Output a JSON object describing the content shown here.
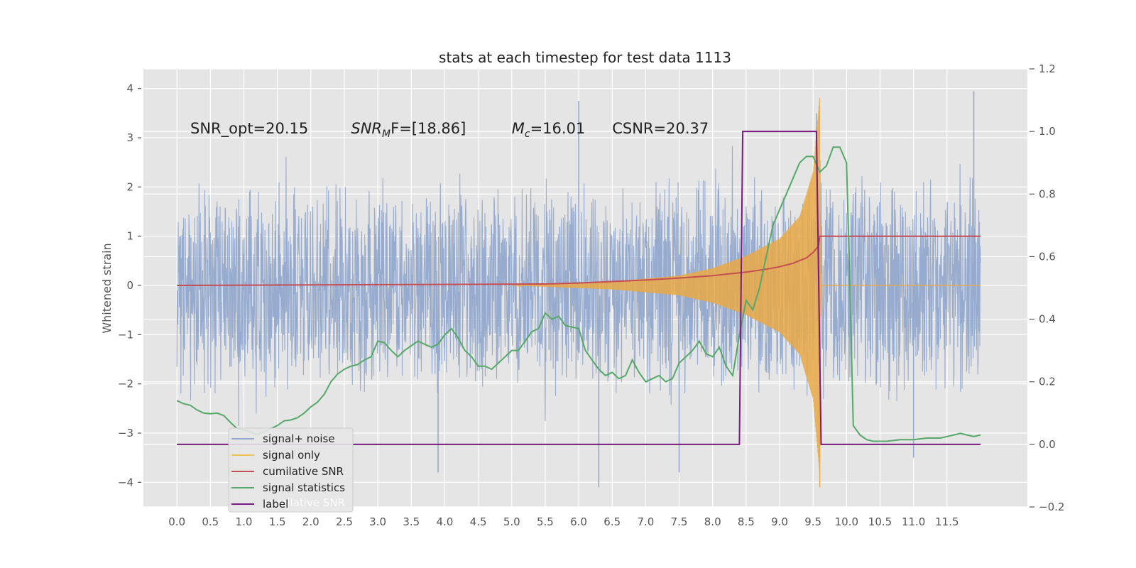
{
  "chart_data": {
    "type": "line",
    "title": "stats at each timestep for test data 1113",
    "ylabel": "Whitened strain",
    "y2label": "",
    "xlim": [
      -0.5,
      12.7
    ],
    "ylim": [
      -4.5,
      4.4
    ],
    "y2lim": [
      -0.2,
      1.2
    ],
    "x_ticks": [
      0.0,
      0.5,
      1.0,
      1.5,
      2.0,
      2.5,
      3.0,
      3.5,
      4.0,
      4.5,
      5.0,
      5.5,
      6.0,
      6.5,
      7.0,
      7.5,
      8.0,
      8.5,
      9.0,
      9.5,
      10.0,
      10.5,
      11.0,
      11.5
    ],
    "x_tick_labels": [
      "0.0",
      "0.5",
      "1.0",
      "1.5",
      "2.0",
      "2.5",
      "3.0",
      "3.5",
      "4.0",
      "4.5",
      "5.0",
      "5.5",
      "6.0",
      "6.5",
      "7.0",
      "7.5",
      "8.0",
      "8.5",
      "9.0",
      "9.5",
      "10.0",
      "10.5",
      "11.0",
      "11.5"
    ],
    "y_ticks": [
      4,
      3,
      2,
      1,
      0,
      -1,
      -2,
      -3,
      -4
    ],
    "y_tick_labels": [
      "4",
      "3",
      "2",
      "1",
      "0",
      "−1",
      "−2",
      "−3",
      "−4"
    ],
    "y2_ticks": [
      1.2,
      1.0,
      0.8,
      0.6,
      0.4,
      0.2,
      0.0,
      -0.2
    ],
    "y2_tick_labels": [
      "1.2",
      "1.0",
      "0.8",
      "0.6",
      "0.4",
      "0.2",
      "0.0",
      "−0.2"
    ],
    "grid": true,
    "legend_position": "lower-left",
    "annotations": [
      {
        "text": "SNR_opt=20.15",
        "x": 0.2,
        "y": 3.2
      },
      {
        "text": "SNR",
        "sub": "M",
        "text2": "F=[18.86]",
        "x": 2.6,
        "y": 3.2
      },
      {
        "text": "M",
        "sub": "c",
        "text2": "=16.01",
        "x": 5.0,
        "y": 3.2
      },
      {
        "text": "CSNR=20.37",
        "x": 6.5,
        "y": 3.2
      }
    ],
    "series": [
      {
        "name": "signal+ noise",
        "color": "#92a8cc",
        "axis": "left",
        "kind": "noise",
        "amp_env": [
          [
            0.0,
            2.3
          ],
          [
            8.0,
            2.3
          ],
          [
            9.6,
            2.4
          ],
          [
            12.0,
            2.3
          ]
        ],
        "spikes": [
          [
            6.0,
            3.75
          ],
          [
            11.9,
            3.95
          ],
          [
            9.55,
            3.5
          ],
          [
            6.3,
            -4.1
          ],
          [
            3.9,
            -3.8
          ],
          [
            11.0,
            -3.5
          ],
          [
            7.5,
            -3.8
          ]
        ],
        "x_range": [
          0.0,
          12.0
        ]
      },
      {
        "name": "signal only",
        "color": "#e9a845",
        "axis": "left",
        "kind": "chirp",
        "env": [
          [
            5.0,
            0.0
          ],
          [
            6.5,
            0.08
          ],
          [
            7.5,
            0.2
          ],
          [
            8.0,
            0.35
          ],
          [
            8.5,
            0.6
          ],
          [
            9.0,
            0.95
          ],
          [
            9.3,
            1.4
          ],
          [
            9.5,
            2.3
          ],
          [
            9.6,
            3.85
          ],
          [
            9.62,
            0.0
          ],
          [
            12.0,
            0.0
          ]
        ],
        "min_spike": [
          9.6,
          -4.1
        ]
      },
      {
        "name": "cumilative SNR",
        "color": "#c44e52",
        "axis": "left",
        "kind": "line",
        "points": [
          [
            0.0,
            0.0
          ],
          [
            2.0,
            0.01
          ],
          [
            4.0,
            0.02
          ],
          [
            5.5,
            0.03
          ],
          [
            6.0,
            0.05
          ],
          [
            6.5,
            0.08
          ],
          [
            7.0,
            0.11
          ],
          [
            7.5,
            0.15
          ],
          [
            8.0,
            0.2
          ],
          [
            8.5,
            0.27
          ],
          [
            8.8,
            0.33
          ],
          [
            9.0,
            0.38
          ],
          [
            9.2,
            0.45
          ],
          [
            9.4,
            0.56
          ],
          [
            9.5,
            0.67
          ],
          [
            9.58,
            0.8
          ],
          [
            9.6,
            1.0
          ],
          [
            12.0,
            1.0
          ]
        ]
      },
      {
        "name": "signal statistics",
        "color": "#55a868",
        "axis": "right",
        "kind": "line",
        "points": [
          [
            0.0,
            0.14
          ],
          [
            0.1,
            0.13
          ],
          [
            0.2,
            0.125
          ],
          [
            0.3,
            0.11
          ],
          [
            0.4,
            0.1
          ],
          [
            0.5,
            0.098
          ],
          [
            0.6,
            0.1
          ],
          [
            0.7,
            0.092
          ],
          [
            0.8,
            0.07
          ],
          [
            0.9,
            0.05
          ],
          [
            1.0,
            0.045
          ],
          [
            1.1,
            0.04
          ],
          [
            1.2,
            0.03
          ],
          [
            1.3,
            0.04
          ],
          [
            1.4,
            0.05
          ],
          [
            1.5,
            0.06
          ],
          [
            1.6,
            0.075
          ],
          [
            1.7,
            0.078
          ],
          [
            1.8,
            0.085
          ],
          [
            1.9,
            0.1
          ],
          [
            2.0,
            0.12
          ],
          [
            2.1,
            0.135
          ],
          [
            2.2,
            0.16
          ],
          [
            2.3,
            0.2
          ],
          [
            2.4,
            0.225
          ],
          [
            2.5,
            0.24
          ],
          [
            2.6,
            0.25
          ],
          [
            2.7,
            0.255
          ],
          [
            2.8,
            0.27
          ],
          [
            2.9,
            0.28
          ],
          [
            3.0,
            0.33
          ],
          [
            3.1,
            0.325
          ],
          [
            3.2,
            0.3
          ],
          [
            3.3,
            0.28
          ],
          [
            3.4,
            0.3
          ],
          [
            3.5,
            0.315
          ],
          [
            3.6,
            0.33
          ],
          [
            3.7,
            0.32
          ],
          [
            3.8,
            0.31
          ],
          [
            3.9,
            0.32
          ],
          [
            4.0,
            0.35
          ],
          [
            4.1,
            0.37
          ],
          [
            4.2,
            0.34
          ],
          [
            4.3,
            0.3
          ],
          [
            4.4,
            0.28
          ],
          [
            4.5,
            0.25
          ],
          [
            4.6,
            0.25
          ],
          [
            4.7,
            0.24
          ],
          [
            4.8,
            0.26
          ],
          [
            4.9,
            0.28
          ],
          [
            5.0,
            0.3
          ],
          [
            5.1,
            0.3
          ],
          [
            5.2,
            0.33
          ],
          [
            5.3,
            0.36
          ],
          [
            5.4,
            0.37
          ],
          [
            5.5,
            0.42
          ],
          [
            5.6,
            0.4
          ],
          [
            5.7,
            0.41
          ],
          [
            5.8,
            0.38
          ],
          [
            5.9,
            0.375
          ],
          [
            6.0,
            0.37
          ],
          [
            6.1,
            0.3
          ],
          [
            6.2,
            0.27
          ],
          [
            6.3,
            0.24
          ],
          [
            6.4,
            0.22
          ],
          [
            6.5,
            0.23
          ],
          [
            6.6,
            0.21
          ],
          [
            6.7,
            0.22
          ],
          [
            6.8,
            0.27
          ],
          [
            6.9,
            0.23
          ],
          [
            7.0,
            0.2
          ],
          [
            7.1,
            0.21
          ],
          [
            7.2,
            0.22
          ],
          [
            7.3,
            0.2
          ],
          [
            7.4,
            0.21
          ],
          [
            7.5,
            0.26
          ],
          [
            7.6,
            0.28
          ],
          [
            7.7,
            0.3
          ],
          [
            7.8,
            0.33
          ],
          [
            7.9,
            0.29
          ],
          [
            8.0,
            0.28
          ],
          [
            8.1,
            0.31
          ],
          [
            8.2,
            0.25
          ],
          [
            8.3,
            0.22
          ],
          [
            8.4,
            0.35
          ],
          [
            8.5,
            0.46
          ],
          [
            8.6,
            0.43
          ],
          [
            8.7,
            0.5
          ],
          [
            8.8,
            0.6
          ],
          [
            8.9,
            0.7
          ],
          [
            9.0,
            0.75
          ],
          [
            9.1,
            0.8
          ],
          [
            9.2,
            0.85
          ],
          [
            9.3,
            0.9
          ],
          [
            9.4,
            0.92
          ],
          [
            9.5,
            0.92
          ],
          [
            9.6,
            0.87
          ],
          [
            9.7,
            0.89
          ],
          [
            9.8,
            0.95
          ],
          [
            9.9,
            0.95
          ],
          [
            10.0,
            0.9
          ],
          [
            10.05,
            0.5
          ],
          [
            10.1,
            0.06
          ],
          [
            10.2,
            0.03
          ],
          [
            10.3,
            0.015
          ],
          [
            10.4,
            0.01
          ],
          [
            10.6,
            0.01
          ],
          [
            10.8,
            0.015
          ],
          [
            11.0,
            0.015
          ],
          [
            11.2,
            0.02
          ],
          [
            11.4,
            0.02
          ],
          [
            11.5,
            0.025
          ],
          [
            11.6,
            0.03
          ],
          [
            11.7,
            0.035
          ],
          [
            11.8,
            0.03
          ],
          [
            11.9,
            0.025
          ],
          [
            12.0,
            0.03
          ]
        ]
      },
      {
        "name": "label",
        "color": "#7b1a80",
        "axis": "right",
        "kind": "line",
        "points": [
          [
            0.0,
            0.0
          ],
          [
            8.4,
            0.0
          ],
          [
            8.45,
            1.0
          ],
          [
            9.55,
            1.0
          ],
          [
            9.62,
            0.0
          ],
          [
            12.0,
            0.0
          ]
        ]
      }
    ],
    "legend": [
      {
        "label": "signal+ noise",
        "color": "#92a8cc"
      },
      {
        "label": "signal only",
        "color": "#f0c05a"
      },
      {
        "label": "cumilative SNR",
        "color": "#c44e52"
      },
      {
        "label": "signal statistics",
        "color": "#55a868"
      },
      {
        "label": "label",
        "color": "#7b1a80"
      }
    ],
    "legend_ghost_text": "cumilative SNR"
  }
}
